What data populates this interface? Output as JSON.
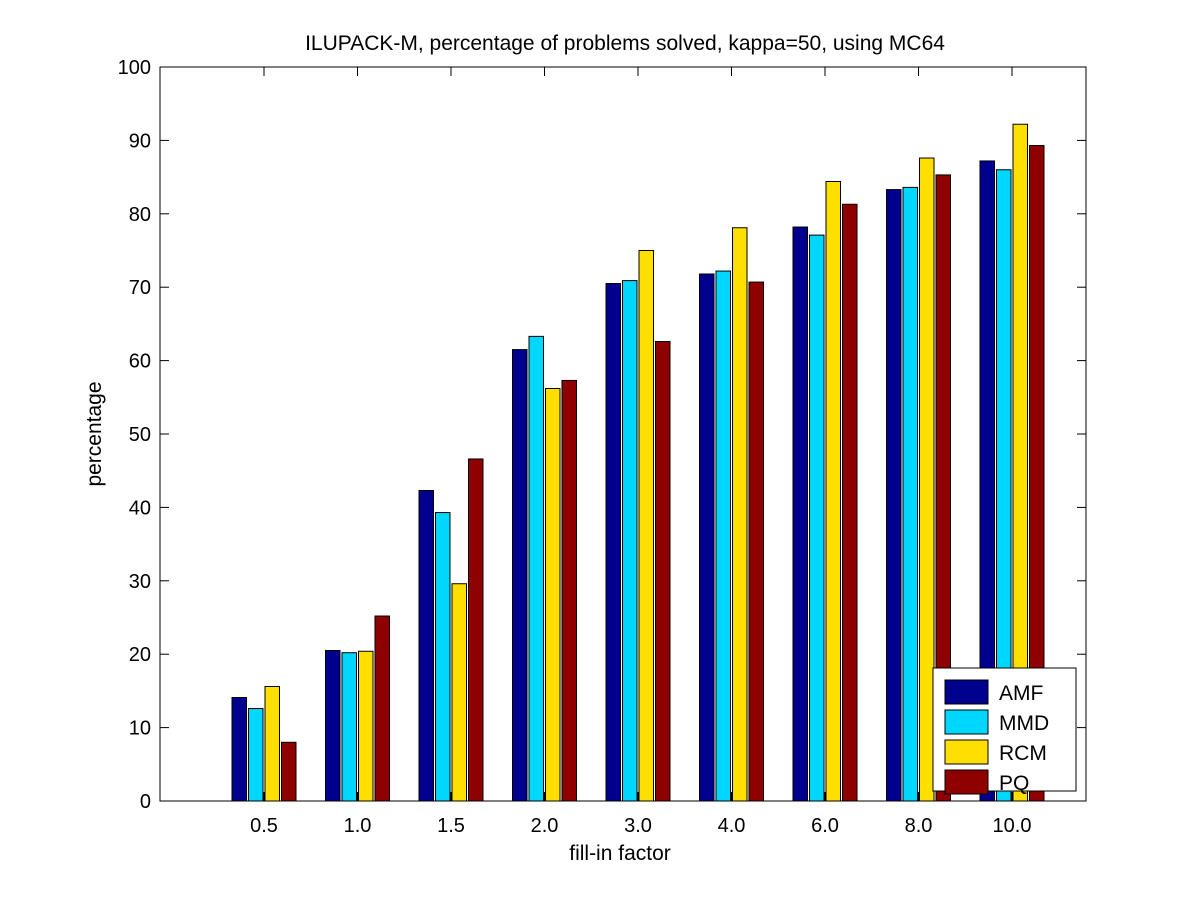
{
  "chart_data": {
    "type": "bar",
    "title": "ILUPACK-M, percentage of problems solved, kappa=50, using MC64",
    "xlabel": "fill-in factor",
    "ylabel": "percentage",
    "ylim": [
      0,
      100
    ],
    "yticks": [
      0,
      10,
      20,
      30,
      40,
      50,
      60,
      70,
      80,
      90,
      100
    ],
    "categories": [
      "0.5",
      "1.0",
      "1.5",
      "2.0",
      "3.0",
      "4.0",
      "6.0",
      "8.0",
      "10.0"
    ],
    "series": [
      {
        "name": "AMF",
        "color": "#00008f",
        "values": [
          14.1,
          20.5,
          42.3,
          61.5,
          70.5,
          71.8,
          78.2,
          83.3,
          87.2
        ]
      },
      {
        "name": "MMD",
        "color": "#00d7ff",
        "values": [
          12.6,
          20.2,
          39.3,
          63.3,
          70.9,
          72.2,
          77.1,
          83.6,
          86.0
        ]
      },
      {
        "name": "RCM",
        "color": "#ffdf00",
        "values": [
          15.6,
          20.4,
          29.6,
          56.2,
          75.0,
          78.1,
          84.4,
          87.6,
          92.2
        ]
      },
      {
        "name": "PQ",
        "color": "#8f0000",
        "values": [
          8.0,
          25.2,
          46.6,
          57.3,
          62.6,
          70.7,
          81.3,
          85.3,
          89.3
        ]
      }
    ],
    "legend_position": "bottom-right",
    "grid": false
  }
}
